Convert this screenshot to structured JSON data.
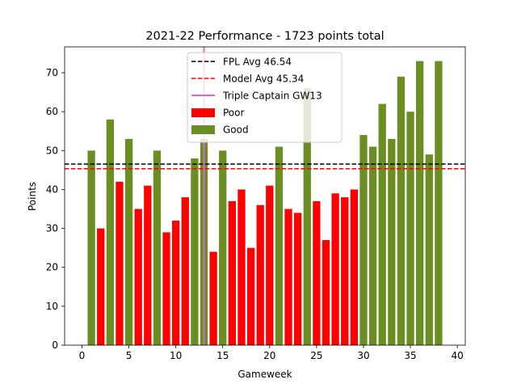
{
  "chart_data": {
    "type": "bar",
    "title": "2021-22 Performance - 1723 points total",
    "xlabel": "Gameweek",
    "ylabel": "Points",
    "xlim": [
      -1.85,
      40.85
    ],
    "ylim": [
      0,
      76.65
    ],
    "xticks": [
      0,
      5,
      10,
      15,
      20,
      25,
      30,
      35,
      40
    ],
    "yticks": [
      0,
      10,
      20,
      30,
      40,
      50,
      60,
      70
    ],
    "grid": false,
    "legend_position": "upper center",
    "colors": {
      "poor": "#ff0000",
      "good": "#6b8e23",
      "fpl_avg": "#000000",
      "model_avg": "#ff0000",
      "triple_captain": "#e066cc"
    },
    "gameweeks": [
      1,
      2,
      3,
      4,
      5,
      6,
      7,
      8,
      9,
      10,
      11,
      12,
      13,
      14,
      15,
      16,
      17,
      18,
      19,
      20,
      21,
      22,
      23,
      24,
      25,
      26,
      27,
      28,
      29,
      30,
      31,
      32,
      33,
      34,
      35,
      36,
      37,
      38
    ],
    "points": [
      50,
      30,
      58,
      42,
      53,
      35,
      41,
      50,
      29,
      32,
      38,
      48,
      53,
      24,
      50,
      37,
      40,
      25,
      36,
      41,
      51,
      35,
      34,
      66,
      37,
      27,
      39,
      38,
      40,
      54,
      51,
      62,
      53,
      69,
      60,
      73,
      49,
      73
    ],
    "rating": [
      "Good",
      "Poor",
      "Good",
      "Poor",
      "Good",
      "Poor",
      "Poor",
      "Good",
      "Poor",
      "Poor",
      "Poor",
      "Good",
      "Good",
      "Poor",
      "Good",
      "Poor",
      "Poor",
      "Poor",
      "Poor",
      "Poor",
      "Good",
      "Poor",
      "Poor",
      "Good",
      "Poor",
      "Poor",
      "Poor",
      "Poor",
      "Poor",
      "Good",
      "Good",
      "Good",
      "Good",
      "Good",
      "Good",
      "Good",
      "Good",
      "Good"
    ],
    "fpl_avg": 46.54,
    "model_avg": 45.34,
    "triple_captain_gw": 13,
    "legend": [
      {
        "label": "FPL Avg 46.54",
        "kind": "dashed-line",
        "color": "#000000"
      },
      {
        "label": "Model Avg 45.34",
        "kind": "dashed-line",
        "color": "#ff0000"
      },
      {
        "label": "Triple Captain GW13",
        "kind": "line",
        "color": "#e066cc"
      },
      {
        "label": "Poor",
        "kind": "patch",
        "color": "#ff0000"
      },
      {
        "label": "Good",
        "kind": "patch",
        "color": "#6b8e23"
      }
    ]
  }
}
